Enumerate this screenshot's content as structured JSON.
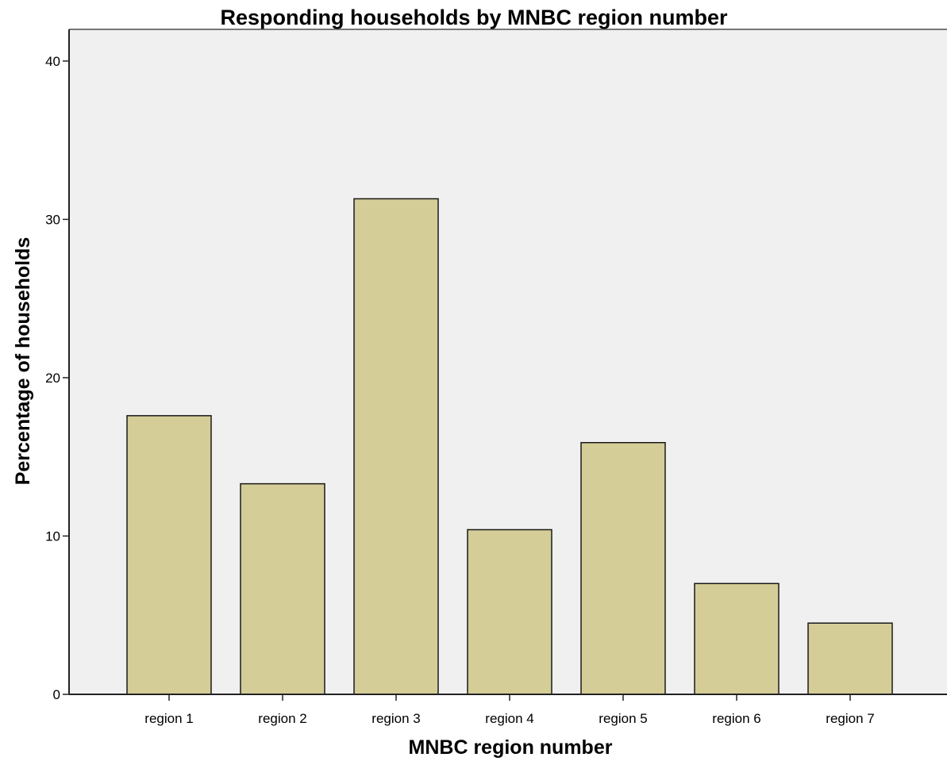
{
  "chart_data": {
    "type": "bar",
    "title": "Responding households by MNBC region number",
    "xlabel": "MNBC region number",
    "ylabel": "Percentage of households",
    "categories": [
      "region 1",
      "region 2",
      "region 3",
      "region 4",
      "region 5",
      "region 6",
      "region 7"
    ],
    "values": [
      17.6,
      13.3,
      31.3,
      10.4,
      15.9,
      7.0,
      4.5
    ],
    "yticks": [
      "0",
      "10",
      "20",
      "30",
      "40"
    ],
    "ylim": [
      0,
      42
    ],
    "grid": false,
    "legend": "none",
    "colors": {
      "bar_fill": "#d4cd97",
      "bar_stroke": "#1a1a1a",
      "plot_background": "#f0f0f0",
      "axis": "#222222"
    }
  }
}
